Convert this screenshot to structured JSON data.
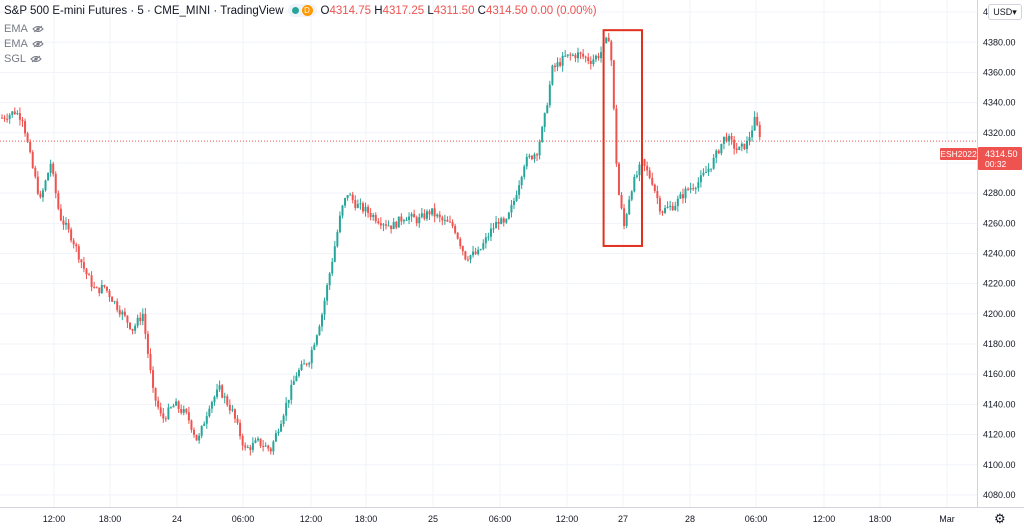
{
  "header": {
    "symbol_title": "S&P 500 E-mini Futures · 5 · CME_MINI · TradingView",
    "badge_letter": "D",
    "ohlc": {
      "o_label": "O",
      "o_value": "4314.75",
      "h_label": "H",
      "h_value": "4317.25",
      "l_label": "L",
      "l_value": "4311.50",
      "c_label": "C",
      "c_value": "4314.50",
      "change": "0.00 (0.00%)"
    }
  },
  "indicators": [
    {
      "label": "EMA",
      "icon": "eye-icon"
    },
    {
      "label": "EMA",
      "icon": "eye-icon"
    },
    {
      "label": "SGL",
      "icon": "eye-icon"
    }
  ],
  "axis": {
    "currency": "USD",
    "settings_icon": "gear-icon"
  },
  "colors": {
    "up": "#26a69a",
    "down": "#ef5350",
    "grid": "#f0f3fa",
    "highlight": "#e0301e",
    "price_line": "#ef5350"
  },
  "price_tag": {
    "symbol": "ESH2022",
    "price": "4314.50",
    "countdown": "00:32"
  },
  "chart_data": {
    "type": "candlestick",
    "title": "S&P 500 E-mini Futures",
    "ylim": [
      4072,
      4408
    ],
    "y_ticks": [
      4080,
      4100,
      4120,
      4140,
      4160,
      4180,
      4200,
      4220,
      4240,
      4260,
      4280,
      4300,
      4320,
      4340,
      4360,
      4380,
      4400
    ],
    "x_tick_labels": [
      "12:00",
      "18:00",
      "24",
      "06:00",
      "12:00",
      "18:00",
      "25",
      "06:00",
      "12:00",
      "27",
      "28",
      "06:00",
      "12:00",
      "18:00",
      "Mar"
    ],
    "last_price": 4314.5,
    "grid": true,
    "highlight_box": {
      "x_from": 47,
      "x_to": 50,
      "y_low": 4245,
      "y_high": 4388
    },
    "path_points": [
      [
        0,
        4330
      ],
      [
        1,
        4334
      ],
      [
        1.6,
        4330
      ],
      [
        2.3,
        4300
      ],
      [
        3,
        4275
      ],
      [
        3.8,
        4300
      ],
      [
        4.5,
        4265
      ],
      [
        5.5,
        4250
      ],
      [
        6.5,
        4228
      ],
      [
        7.3,
        4215
      ],
      [
        8,
        4218
      ],
      [
        9,
        4205
      ],
      [
        10.2,
        4190
      ],
      [
        11,
        4200
      ],
      [
        11.8,
        4148
      ],
      [
        12.5,
        4130
      ],
      [
        13.5,
        4140
      ],
      [
        14.5,
        4132
      ],
      [
        15.3,
        4115
      ],
      [
        16.2,
        4140
      ],
      [
        17,
        4150
      ],
      [
        18,
        4135
      ],
      [
        19,
        4110
      ],
      [
        20,
        4115
      ],
      [
        21,
        4110
      ],
      [
        22,
        4135
      ],
      [
        23,
        4160
      ],
      [
        24,
        4170
      ],
      [
        25,
        4200
      ],
      [
        26,
        4245
      ],
      [
        26.5,
        4268
      ],
      [
        27,
        4280
      ],
      [
        27.7,
        4272
      ],
      [
        28.5,
        4268
      ],
      [
        29.5,
        4262
      ],
      [
        30.5,
        4258
      ],
      [
        31.5,
        4265
      ],
      [
        32.5,
        4262
      ],
      [
        33.5,
        4268
      ],
      [
        34.3,
        4262
      ],
      [
        35.3,
        4258
      ],
      [
        36.2,
        4238
      ],
      [
        37.2,
        4240
      ],
      [
        38.2,
        4255
      ],
      [
        38.8,
        4262
      ],
      [
        39.3,
        4258
      ],
      [
        40,
        4275
      ],
      [
        40.8,
        4300
      ],
      [
        41.8,
        4308
      ],
      [
        42.3,
        4325
      ],
      [
        43,
        4362
      ],
      [
        44,
        4370
      ],
      [
        45,
        4372
      ],
      [
        46,
        4368
      ],
      [
        46.7,
        4372
      ],
      [
        47.5,
        4385
      ],
      [
        48.1,
        4284
      ],
      [
        48.6,
        4258
      ],
      [
        49.1,
        4282
      ],
      [
        50,
        4300
      ],
      [
        50.8,
        4288
      ],
      [
        51.5,
        4268
      ],
      [
        52.5,
        4272
      ],
      [
        53.5,
        4282
      ],
      [
        54.5,
        4288
      ],
      [
        55.5,
        4300
      ],
      [
        56.5,
        4318
      ],
      [
        57.5,
        4308
      ],
      [
        58.2,
        4313
      ],
      [
        58.8,
        4328
      ],
      [
        59.4,
        4315
      ]
    ]
  }
}
